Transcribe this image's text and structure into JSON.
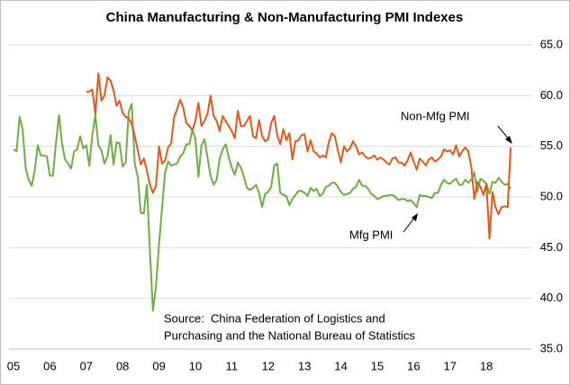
{
  "chart_data": {
    "type": "line",
    "title": "China Manufacturing & Non-Manufacturing PMI Indexes",
    "source": [
      "Source:  China Federation of Logistics and",
      "Purchasing and the National Bureau of Statistics"
    ],
    "categories": [
      "05",
      null,
      null,
      null,
      null,
      null,
      null,
      null,
      null,
      null,
      null,
      null,
      "06",
      null,
      null,
      null,
      null,
      null,
      null,
      null,
      null,
      null,
      null,
      null,
      "07",
      null,
      null,
      null,
      null,
      null,
      null,
      null,
      null,
      null,
      null,
      null,
      "08",
      null,
      null,
      null,
      null,
      null,
      null,
      null,
      null,
      null,
      null,
      null,
      "09",
      null,
      null,
      null,
      null,
      null,
      null,
      null,
      null,
      null,
      null,
      null,
      "10",
      null,
      null,
      null,
      null,
      null,
      null,
      null,
      null,
      null,
      null,
      null,
      "11",
      null,
      null,
      null,
      null,
      null,
      null,
      null,
      null,
      null,
      null,
      null,
      "12",
      null,
      null,
      null,
      null,
      null,
      null,
      null,
      null,
      null,
      null,
      null,
      "13",
      null,
      null,
      null,
      null,
      null,
      null,
      null,
      null,
      null,
      null,
      null,
      "14",
      null,
      null,
      null,
      null,
      null,
      null,
      null,
      null,
      null,
      null,
      null,
      "15",
      null,
      null,
      null,
      null,
      null,
      null,
      null,
      null,
      null,
      null,
      null,
      "16",
      null,
      null,
      null,
      null,
      null,
      null,
      null,
      null,
      null,
      null,
      null,
      "17",
      null,
      null,
      null,
      null,
      null,
      null,
      null,
      null,
      null,
      null,
      null,
      "18",
      null,
      null,
      null,
      null,
      null,
      null,
      null,
      null
    ],
    "series": [
      {
        "name": "Mfg PMI",
        "color": "#70ad47",
        "values": [
          54.7,
          54.5,
          57.9,
          56.7,
          52.9,
          51.7,
          51.1,
          52.6,
          55.1,
          54.1,
          54.1,
          54.0,
          52.1,
          52.1,
          55.3,
          58.1,
          55.3,
          53.7,
          53.3,
          52.8,
          54.5,
          54.7,
          56.0,
          54.8,
          55.1,
          53.1,
          56.1,
          58.1,
          55.1,
          54.6,
          53.3,
          54.0,
          56.1,
          53.2,
          55.4,
          55.3,
          53.0,
          53.4,
          58.4,
          59.2,
          53.3,
          52.0,
          48.4,
          48.4,
          51.2,
          44.6,
          38.8,
          41.2,
          45.3,
          49.0,
          52.4,
          53.5,
          53.1,
          53.2,
          53.3,
          54.0,
          54.3,
          55.2,
          55.2,
          56.6,
          55.8,
          52.0,
          55.1,
          55.7,
          53.9,
          52.1,
          51.2,
          51.7,
          53.8,
          54.7,
          55.2,
          53.9,
          52.9,
          52.2,
          53.4,
          52.9,
          52.0,
          50.9,
          50.7,
          50.9,
          51.2,
          50.4,
          49.0,
          50.3,
          50.5,
          51.0,
          53.1,
          53.3,
          50.4,
          50.2,
          50.1,
          49.2,
          49.8,
          50.2,
          50.6,
          50.6,
          50.4,
          50.1,
          50.9,
          50.6,
          50.8,
          50.1,
          50.3,
          51.0,
          51.1,
          51.4,
          51.4,
          51.0,
          50.5,
          50.2,
          50.3,
          50.4,
          50.8,
          51.0,
          51.7,
          51.1,
          51.1,
          50.8,
          50.3,
          50.1,
          49.8,
          49.9,
          50.1,
          50.1,
          50.2,
          50.2,
          50.0,
          49.7,
          49.8,
          49.8,
          49.6,
          49.7,
          49.4,
          49.0,
          50.2,
          50.1,
          50.1,
          50.0,
          49.9,
          50.4,
          50.4,
          51.2,
          51.7,
          51.4,
          51.3,
          51.6,
          51.8,
          51.2,
          51.2,
          51.7,
          51.4,
          51.7,
          52.4,
          50.5,
          51.8,
          51.6,
          51.3,
          50.3,
          51.5,
          51.4,
          51.9,
          51.5,
          51.2,
          51.3,
          50.8
        ]
      },
      {
        "name": "Non-Mfg PMI",
        "color": "#e2581e",
        "values": [
          null,
          null,
          null,
          null,
          null,
          null,
          null,
          null,
          null,
          null,
          null,
          null,
          null,
          null,
          null,
          null,
          null,
          null,
          null,
          null,
          null,
          null,
          null,
          null,
          60.4,
          60.4,
          60.6,
          58.2,
          62.2,
          59.5,
          60.0,
          61.8,
          61.5,
          60.5,
          59.0,
          59.5,
          58.3,
          57.9,
          57.8,
          57.2,
          56.0,
          54.6,
          53.2,
          53.8,
          52.6,
          51.2,
          50.4,
          51.1,
          55.0,
          53.3,
          53.6,
          54.9,
          55.3,
          57.9,
          58.7,
          59.6,
          58.8,
          57.3,
          57.0,
          56.6,
          57.5,
          59.3,
          57.0,
          57.5,
          58.2,
          60.0,
          58.0,
          57.5,
          56.5,
          58.0,
          57.5,
          57.0,
          56.5,
          55.8,
          58.5,
          57.0,
          57.0,
          57.5,
          58.0,
          56.0,
          55.8,
          57.6,
          56.0,
          55.5,
          55.7,
          57.3,
          58.0,
          56.1,
          55.2,
          56.7,
          55.6,
          56.3,
          53.7,
          55.5,
          55.6,
          56.1,
          56.2,
          54.5,
          55.6,
          54.5,
          54.3,
          53.9,
          54.1,
          53.9,
          55.4,
          56.3,
          56.0,
          54.6,
          53.4,
          55.0,
          54.5,
          54.8,
          55.5,
          55.0,
          54.2,
          54.4,
          54.0,
          53.8,
          53.9,
          54.1,
          53.7,
          53.9,
          53.7,
          53.4,
          53.2,
          53.8,
          53.9,
          53.4,
          53.4,
          53.1,
          53.6,
          54.4,
          53.5,
          52.7,
          53.8,
          53.5,
          53.1,
          53.7,
          53.9,
          53.5,
          53.7,
          54.0,
          54.7,
          54.5,
          54.6,
          54.2,
          55.1,
          54.0,
          54.5,
          54.9,
          54.5,
          53.0,
          49.8,
          51.5,
          51.0,
          50.2,
          51.3,
          45.9,
          50.5,
          49.0,
          48.3,
          49.0,
          49.1,
          49.0,
          54.9
        ]
      }
    ],
    "ylim": [
      35,
      65
    ],
    "yticks": [
      {
        "value": 35,
        "label": "35.0"
      },
      {
        "value": 40,
        "label": "40.0"
      },
      {
        "value": 45,
        "label": "45.0"
      },
      {
        "value": 50,
        "label": "50.0"
      },
      {
        "value": 55,
        "label": "55.0"
      },
      {
        "value": 60,
        "label": "60.0"
      },
      {
        "value": 65,
        "label": "65.0"
      }
    ],
    "y_axis_side": "right",
    "grid": true
  }
}
